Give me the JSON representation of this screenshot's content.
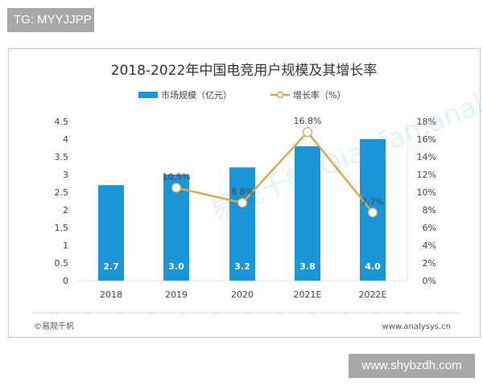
{
  "overlay": {
    "top_left_tag": "TG: MYYJJPP",
    "bottom_right_tag": "www.shybzdh.com"
  },
  "footer": {
    "source_left": "©易观千帆",
    "source_right": "www.analysys.cn"
  },
  "watermark": "易观千帆 Qianfan.analysys",
  "colors": {
    "bar": "#1a96d8",
    "line": "#d9a94a",
    "marker_fill": "#ffffff"
  },
  "chart_data": {
    "type": "bar+line",
    "title": "2018-2022年中国电竞用户规模及其增长率",
    "categories": [
      "2018",
      "2019",
      "2020",
      "2021E",
      "2022E"
    ],
    "series": [
      {
        "name": "市场规模（亿元）",
        "type": "bar",
        "axis": "left",
        "values": [
          2.7,
          3.0,
          3.2,
          3.8,
          4.0
        ],
        "labels": [
          "2.7",
          "3.0",
          "3.2",
          "3.8",
          "4.0"
        ]
      },
      {
        "name": "增长率（%）",
        "type": "line",
        "axis": "right",
        "values": [
          null,
          10.5,
          8.8,
          16.8,
          7.7
        ],
        "labels": [
          "",
          "10.5%",
          "8.8%",
          "16.8%",
          "7.7%"
        ]
      }
    ],
    "y_left": {
      "range": [
        0,
        4.5
      ],
      "ticks": [
        "0",
        "0.5",
        "1",
        "1.5",
        "2",
        "2.5",
        "3",
        "3.5",
        "4",
        "4.5"
      ]
    },
    "y_right": {
      "range": [
        0,
        18
      ],
      "ticks": [
        "0%",
        "2%",
        "4%",
        "6%",
        "8%",
        "10%",
        "12%",
        "14%",
        "16%",
        "18%"
      ]
    },
    "grid": false,
    "legend": "top"
  }
}
